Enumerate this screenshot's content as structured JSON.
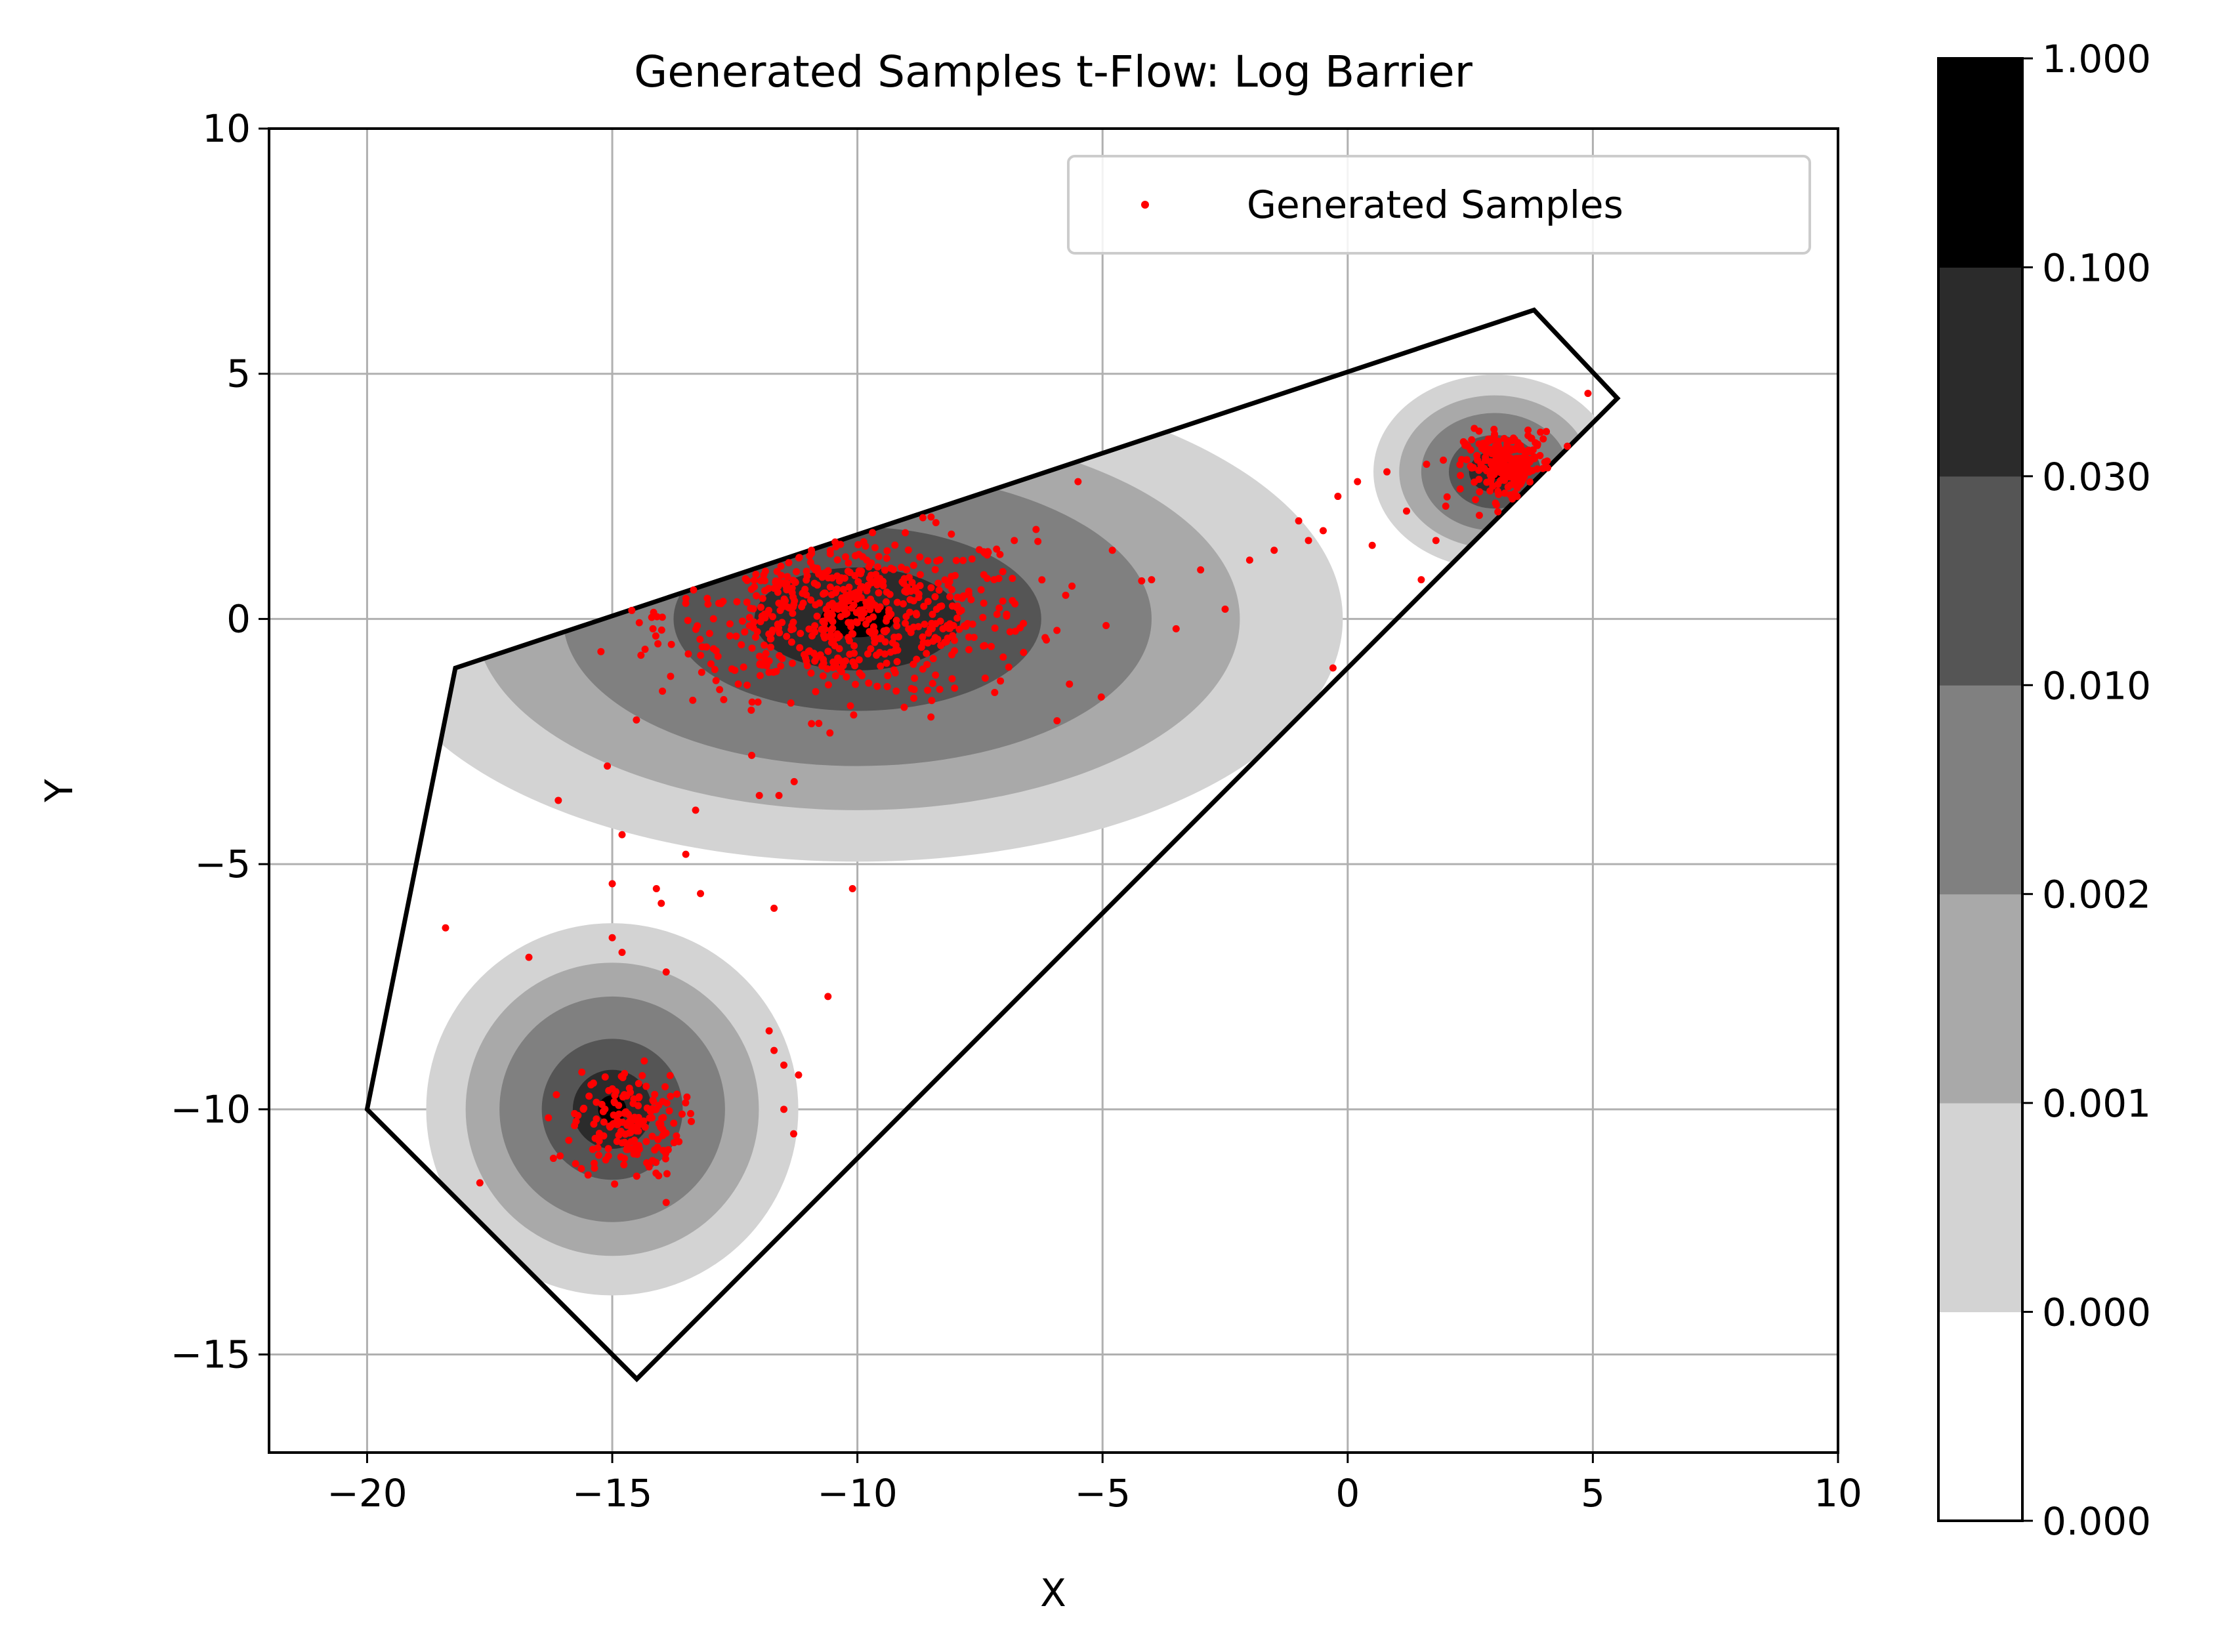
{
  "chart_data": {
    "type": "scatter",
    "title": "Generated Samples t-Flow: Log Barrier",
    "xlabel": "X",
    "ylabel": "Y",
    "xlim": [
      -22,
      10
    ],
    "ylim": [
      -17,
      10
    ],
    "x_ticks": [
      -20,
      -15,
      -10,
      -5,
      0,
      5,
      10
    ],
    "y_ticks": [
      -15,
      -10,
      -5,
      0,
      5,
      10
    ],
    "x_tick_labels": [
      "−20",
      "−15",
      "−10",
      "−5",
      "0",
      "5",
      "10"
    ],
    "y_tick_labels": [
      "−15",
      "−10",
      "−5",
      "0",
      "5",
      "10"
    ],
    "grid": true,
    "legend": {
      "position": "top-right",
      "label": "Generated Samples"
    },
    "colors": {
      "samples": "#ff0000",
      "boundary": "#000000",
      "grid": "#b0b0b0"
    },
    "constraint_polygon": [
      [
        -18.2,
        -1.0
      ],
      [
        3.8,
        6.3
      ],
      [
        5.5,
        4.5
      ],
      [
        -14.5,
        -15.5
      ],
      [
        -20.0,
        -10.0
      ]
    ],
    "density_components": [
      {
        "mean": [
          -10,
          0
        ],
        "sx": 3.0,
        "sy": 1.5
      },
      {
        "mean": [
          -15,
          -10
        ],
        "sx": 1.15,
        "sy": 1.15
      },
      {
        "mean": [
          3,
          3
        ],
        "sx": 0.75,
        "sy": 0.6
      }
    ],
    "contour_levels": [
      {
        "scale": 3.3,
        "color": "#d3d3d3"
      },
      {
        "scale": 2.6,
        "color": "#a9a9a9"
      },
      {
        "scale": 2.0,
        "color": "#808080"
      },
      {
        "scale": 1.25,
        "color": "#555555"
      },
      {
        "scale": 0.7,
        "color": "#2b2b2b"
      },
      {
        "scale": 0.25,
        "color": "#000000"
      }
    ],
    "colorbar": {
      "tick_labels": [
        "0.000",
        "0.000",
        "0.001",
        "0.002",
        "0.010",
        "0.030",
        "0.100",
        "1.000"
      ],
      "bands": [
        "#ffffff",
        "#d3d3d3",
        "#a9a9a9",
        "#808080",
        "#555555",
        "#2b2b2b",
        "#000000"
      ]
    },
    "sample_clusters": [
      {
        "name": "upper-middle",
        "n": 620,
        "cx": -10.2,
        "cy": 0.1,
        "sx": 1.9,
        "sy": 0.85
      },
      {
        "name": "lower-left",
        "n": 170,
        "cx": -14.7,
        "cy": -10.3,
        "sx": 0.55,
        "sy": 0.55
      },
      {
        "name": "upper-right",
        "n": 240,
        "cx": 3.3,
        "cy": 3.1,
        "sx": 0.45,
        "sy": 0.35
      }
    ],
    "sample_points_extra": [
      [
        -8.5,
        -2.0
      ],
      [
        -7.2,
        -1.5
      ],
      [
        -6.8,
        1.6
      ],
      [
        -5.5,
        2.8
      ],
      [
        -4.8,
        1.4
      ],
      [
        -4.0,
        0.8
      ],
      [
        -3.5,
        -0.2
      ],
      [
        -3.0,
        1.0
      ],
      [
        -2.5,
        0.2
      ],
      [
        -2.0,
        1.2
      ],
      [
        -1.5,
        1.4
      ],
      [
        -1.0,
        2.0
      ],
      [
        -0.8,
        1.6
      ],
      [
        -0.5,
        1.8
      ],
      [
        -0.2,
        2.5
      ],
      [
        0.2,
        2.8
      ],
      [
        0.5,
        1.5
      ],
      [
        0.8,
        3.0
      ],
      [
        1.2,
        2.2
      ],
      [
        1.5,
        0.8
      ],
      [
        1.8,
        1.6
      ],
      [
        2.0,
        2.3
      ],
      [
        -0.3,
        -1.0
      ],
      [
        4.9,
        4.6
      ],
      [
        -12.0,
        -3.6
      ],
      [
        -11.6,
        -3.6
      ],
      [
        -11.7,
        -5.9
      ],
      [
        -10.1,
        -5.5
      ],
      [
        -13.3,
        -3.9
      ],
      [
        -13.5,
        -4.8
      ],
      [
        -13.2,
        -5.6
      ],
      [
        -14.1,
        -5.5
      ],
      [
        -14.0,
        -5.8
      ],
      [
        -15.0,
        -5.4
      ],
      [
        -14.8,
        -4.4
      ],
      [
        -15.1,
        -3.0
      ],
      [
        -16.1,
        -3.7
      ],
      [
        -18.4,
        -6.3
      ],
      [
        -16.7,
        -6.9
      ],
      [
        -15.0,
        -6.5
      ],
      [
        -14.8,
        -6.8
      ],
      [
        -13.9,
        -7.2
      ],
      [
        -10.6,
        -7.7
      ],
      [
        -11.8,
        -8.4
      ],
      [
        -11.7,
        -8.8
      ],
      [
        -11.5,
        -9.1
      ],
      [
        -11.2,
        -9.3
      ],
      [
        -11.5,
        -10.0
      ],
      [
        -11.3,
        -10.5
      ],
      [
        -17.7,
        -11.5
      ],
      [
        -16.2,
        -11.0
      ],
      [
        -13.9,
        -11.9
      ]
    ]
  }
}
